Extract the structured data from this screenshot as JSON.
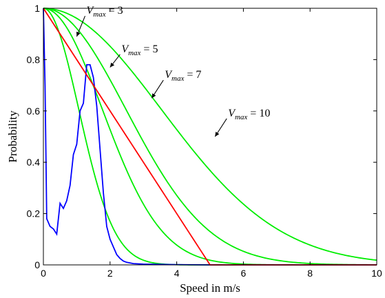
{
  "chart_data": {
    "type": "line",
    "xlabel": "Speed in m/s",
    "ylabel": "Probability",
    "xlim": [
      0,
      10
    ],
    "ylim": [
      0,
      1
    ],
    "xticks": [
      "0",
      "2",
      "4",
      "6",
      "8",
      "10"
    ],
    "yticks": [
      "0",
      "0.2",
      "0.4",
      "0.6",
      "0.8",
      "1"
    ],
    "grid": false,
    "series": [
      {
        "color": "#0000ff",
        "x": [
          0,
          0.05,
          0.1,
          0.2,
          0.3,
          0.4,
          0.5,
          0.6,
          0.7,
          0.8,
          0.9,
          1.0,
          1.1,
          1.2,
          1.3,
          1.4,
          1.5,
          1.6,
          1.7,
          1.8,
          1.9,
          2.0,
          2.1,
          2.2,
          2.3,
          2.4,
          2.5,
          2.7,
          3.0,
          3.5,
          4.0,
          5.0,
          6.0,
          7.0,
          8.0,
          9.0,
          10.0
        ],
        "y": [
          1.0,
          0.7,
          0.18,
          0.15,
          0.14,
          0.12,
          0.24,
          0.22,
          0.25,
          0.31,
          0.43,
          0.47,
          0.6,
          0.63,
          0.78,
          0.78,
          0.73,
          0.62,
          0.45,
          0.28,
          0.15,
          0.1,
          0.07,
          0.04,
          0.025,
          0.015,
          0.01,
          0.005,
          0.003,
          0.002,
          0.001,
          0,
          0,
          0,
          0,
          0,
          0
        ]
      },
      {
        "color": "#ff0000",
        "x": [
          0,
          5,
          10
        ],
        "y": [
          1,
          0,
          0
        ]
      }
    ],
    "curves": [
      {
        "color": "#00ee00",
        "vmax": 3
      },
      {
        "color": "#00ee00",
        "vmax": 5
      },
      {
        "color": "#00ee00",
        "vmax": 7
      },
      {
        "color": "#00ee00",
        "vmax": 10
      }
    ],
    "annotations": [
      {
        "prefix": "V",
        "subscript": "max",
        "suffix": " = 3",
        "arrow_from": [
          1.25,
          0.97
        ],
        "arrow_to": [
          1.0,
          0.89
        ]
      },
      {
        "prefix": "V",
        "subscript": "max",
        "suffix": " = 5",
        "arrow_from": [
          2.3,
          0.82
        ],
        "arrow_to": [
          2.0,
          0.77
        ]
      },
      {
        "prefix": "V",
        "subscript": "max",
        "suffix": " = 7",
        "arrow_from": [
          3.6,
          0.72
        ],
        "arrow_to": [
          3.25,
          0.65
        ]
      },
      {
        "prefix": "V",
        "subscript": "max",
        "suffix": " = 10",
        "arrow_from": [
          5.5,
          0.57
        ],
        "arrow_to": [
          5.15,
          0.5
        ]
      }
    ]
  }
}
